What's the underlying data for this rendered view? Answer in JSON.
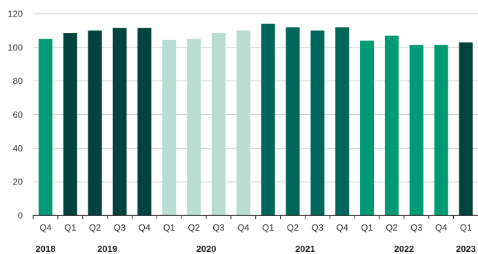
{
  "chart_data": {
    "type": "bar",
    "title": "",
    "xlabel": "",
    "ylabel": "",
    "ylim": [
      0,
      120
    ],
    "yticks": [
      0,
      20,
      40,
      60,
      80,
      100,
      120
    ],
    "grid": true,
    "categories": [
      "Q4",
      "Q1",
      "Q2",
      "Q3",
      "Q4",
      "Q1",
      "Q2",
      "Q3",
      "Q4",
      "Q1",
      "Q2",
      "Q3",
      "Q4",
      "Q1",
      "Q2",
      "Q3",
      "Q4",
      "Q1"
    ],
    "values": [
      105,
      108.5,
      110,
      111.5,
      111.5,
      104.5,
      105,
      108.5,
      110,
      114,
      112,
      110,
      112,
      104,
      107,
      101.5,
      101.5,
      103
    ],
    "bar_colors": [
      "#009a75",
      "#00443d",
      "#00443d",
      "#00443d",
      "#00443d",
      "#b9ddd3",
      "#b9ddd3",
      "#b9ddd3",
      "#b9ddd3",
      "#00665a",
      "#00665a",
      "#00665a",
      "#00665a",
      "#009a75",
      "#009a75",
      "#009a75",
      "#009a75",
      "#00443d"
    ],
    "year_groups": [
      {
        "label": "2018",
        "start": 0,
        "end": 0
      },
      {
        "label": "2019",
        "start": 1,
        "end": 4
      },
      {
        "label": "2020",
        "start": 5,
        "end": 8
      },
      {
        "label": "2021",
        "start": 9,
        "end": 12
      },
      {
        "label": "2022",
        "start": 13,
        "end": 16
      },
      {
        "label": "2023",
        "start": 17,
        "end": 17
      }
    ],
    "colors": {
      "grid": "#c8c8c8",
      "axis": "#1a1a1a"
    }
  }
}
